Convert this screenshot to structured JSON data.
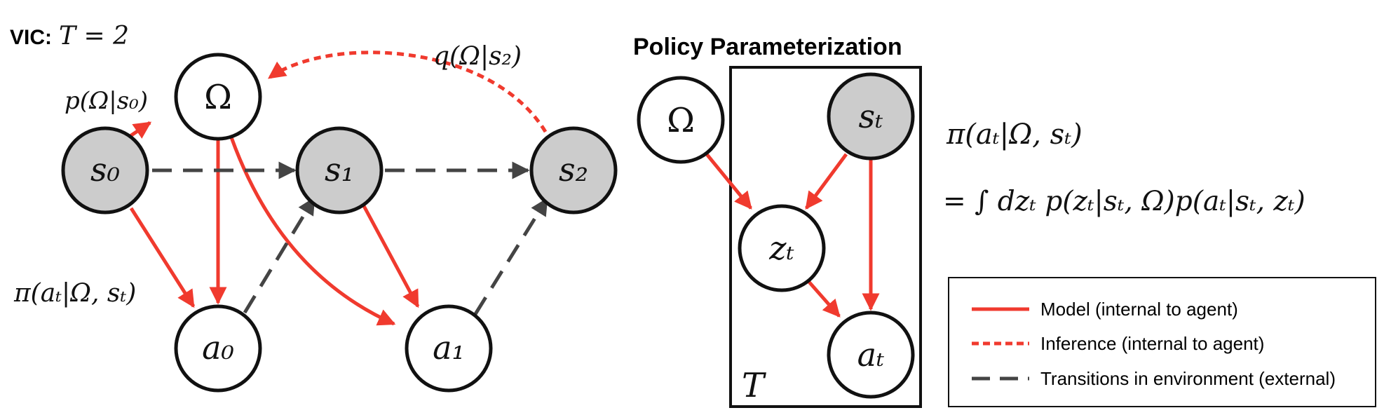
{
  "vic": {
    "label": "VIC:",
    "t_eq": "T = 2",
    "nodes": {
      "omega": "Ω",
      "s0": "s₀",
      "s1": "s₁",
      "s2": "s₂",
      "a0": "a₀",
      "a1": "a₁"
    },
    "p_label": "p(Ω|s₀)",
    "q_label": "q(Ω|s₂)",
    "pi_label": "π(aₜ|Ω, sₜ)"
  },
  "policy": {
    "title": "Policy Parameterization",
    "nodes": {
      "omega": "Ω",
      "st": "sₜ",
      "zt": "zₜ",
      "at": "aₜ"
    },
    "plate": "T",
    "eq_line1": "π(aₜ|Ω, sₜ)",
    "eq_line2": "= ∫ dzₜ p(zₜ|sₜ, Ω)p(aₜ|sₜ, zₜ)"
  },
  "legend": {
    "items": [
      {
        "label": "Model (internal to agent)",
        "style": "solid",
        "color": "#f03a2e"
      },
      {
        "label": "Inference (internal to agent)",
        "style": "dotted",
        "color": "#f03a2e"
      },
      {
        "label": "Transitions in environment (external)",
        "style": "dashed",
        "color": "#444444"
      }
    ]
  }
}
